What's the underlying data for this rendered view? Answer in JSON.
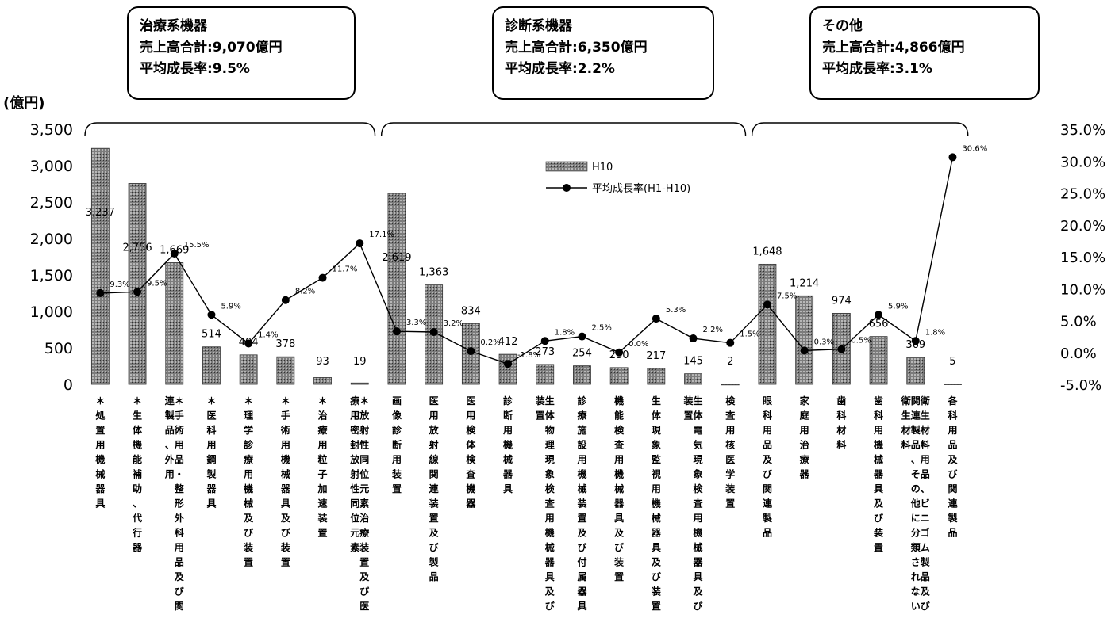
{
  "chart_data": {
    "type": "bar",
    "y_unit_label": "(億円)",
    "ylim": [
      0,
      3500
    ],
    "y_ticks": [
      "3,500",
      "3,000",
      "2,500",
      "2,000",
      "1,500",
      "1,000",
      "500",
      "0"
    ],
    "y2lim": [
      -5.0,
      35.0
    ],
    "y2_ticks": [
      "35.0%",
      "30.0%",
      "25.0%",
      "20.0%",
      "15.0%",
      "10.0%",
      "5.0%",
      "0.0%",
      "-5.0%"
    ],
    "legend": {
      "bar": "H10",
      "line": "平均成長率(H1-H10)",
      "position": "top-center"
    },
    "categories": [
      "＊処置用機械器具",
      "＊生体機能補助、代行器",
      "＊手術用品・整形外科用品及び関連製品、外用",
      "＊医科用鋼製器具",
      "＊理学診療用機械及び装置",
      "＊手術用機械器具及び装置",
      "＊治療用粒子加速装置",
      "＊放射性同位元素治療装置及び医療用密封放射性同位元素",
      "画像診断用装置",
      "医用放射線関連装置及び製品",
      "医用検体検査機器",
      "診断用機械器具",
      "生体物理現象検査用機械器具及び装置",
      "診療施設用機械装置及び付属器具",
      "機能検査用機械器具及び装置",
      "生体現象監視用機械器具及び装置",
      "生体電気現象検査用機械器具及び装置",
      "検査用核医学装置",
      "眼科用品及び関連製品",
      "家庭用治療器",
      "歯科材料",
      "歯科用機械器具及び装置",
      "衛生材料用品、ビニゴム製品及び関連製品、その他に分類されない衛生材料",
      "各科用品及び関連製品"
    ],
    "series": [
      {
        "name": "H10",
        "type": "bar",
        "values": [
          3237,
          2756,
          1669,
          514,
          404,
          378,
          93,
          19,
          2619,
          1363,
          834,
          412,
          273,
          254,
          230,
          217,
          145,
          2,
          1648,
          1214,
          974,
          656,
          369,
          5
        ],
        "labels": [
          "3,237",
          "2,756",
          "1,669",
          "514",
          "404",
          "378",
          "93",
          "19",
          "2,619",
          "1,363",
          "834",
          "412",
          "273",
          "254",
          "230",
          "217",
          "145",
          "2",
          "1,648",
          "1,214",
          "974",
          "656",
          "369",
          "5"
        ]
      },
      {
        "name": "平均成長率(H1-H10)",
        "type": "line",
        "axis": "right",
        "values": [
          9.3,
          9.5,
          15.5,
          5.9,
          1.4,
          8.2,
          11.7,
          17.1,
          3.3,
          3.2,
          0.2,
          -1.8,
          1.8,
          2.5,
          0.0,
          5.3,
          2.2,
          1.5,
          7.5,
          0.3,
          0.5,
          5.9,
          1.8,
          30.6
        ],
        "labels": [
          "9.3%",
          "9.5%",
          "15.5%",
          "5.9%",
          "1.4%",
          "8.2%",
          "11.7%",
          "17.1%",
          "3.3%",
          "3.2%",
          "0.2%",
          "-1.8%",
          "1.8%",
          "2.5%",
          "0.0%",
          "5.3%",
          "2.2%",
          "1.5%",
          "7.5%",
          "0.3%",
          "0.5%",
          "5.9%",
          "1.8%",
          "30.6%"
        ]
      }
    ],
    "groups": [
      {
        "start": 0,
        "end": 7,
        "name": "治療系機器",
        "sales": "売上高合計:9,070億円",
        "growth": "平均成長率:9.5%"
      },
      {
        "start": 8,
        "end": 17,
        "name": "診断系機器",
        "sales": "売上高合計:6,350億円",
        "growth": "平均成長率:2.2%"
      },
      {
        "start": 18,
        "end": 23,
        "name": "その他",
        "sales": "売上高合計:4,866億円",
        "growth": "平均成長率:3.1%"
      }
    ]
  },
  "colors": {
    "bar_fill": "#8c8c8c",
    "line": "#000000",
    "background": "#ffffff"
  }
}
